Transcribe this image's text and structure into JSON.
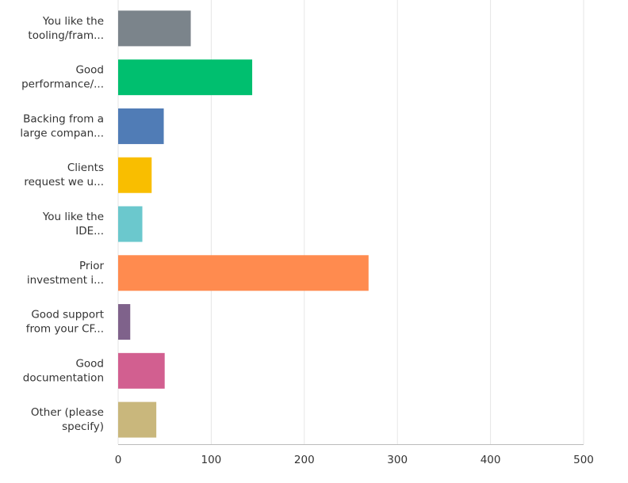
{
  "chart_data": {
    "type": "bar",
    "orientation": "horizontal",
    "categories": [
      [
        "You like the",
        "tooling/fram..."
      ],
      [
        "Good",
        "performance/..."
      ],
      [
        "Backing from a",
        "large compan..."
      ],
      [
        "Clients",
        "request we u..."
      ],
      [
        "You like the",
        "IDE..."
      ],
      [
        "Prior",
        "investment i..."
      ],
      [
        "Good support",
        "from your CF..."
      ],
      [
        "Good",
        "documentation"
      ],
      [
        "Other (please",
        "specify)"
      ]
    ],
    "values": [
      78,
      144,
      49,
      36,
      26,
      269,
      13,
      50,
      41
    ],
    "colors": [
      "#7b848b",
      "#00bf6f",
      "#507cb6",
      "#f9be00",
      "#6bc8cd",
      "#ff8b4f",
      "#7f628b",
      "#d25f90",
      "#c9b77c"
    ],
    "xlim": [
      0,
      500
    ],
    "xticks": [
      0,
      100,
      200,
      300,
      400,
      500
    ],
    "grid": true
  }
}
